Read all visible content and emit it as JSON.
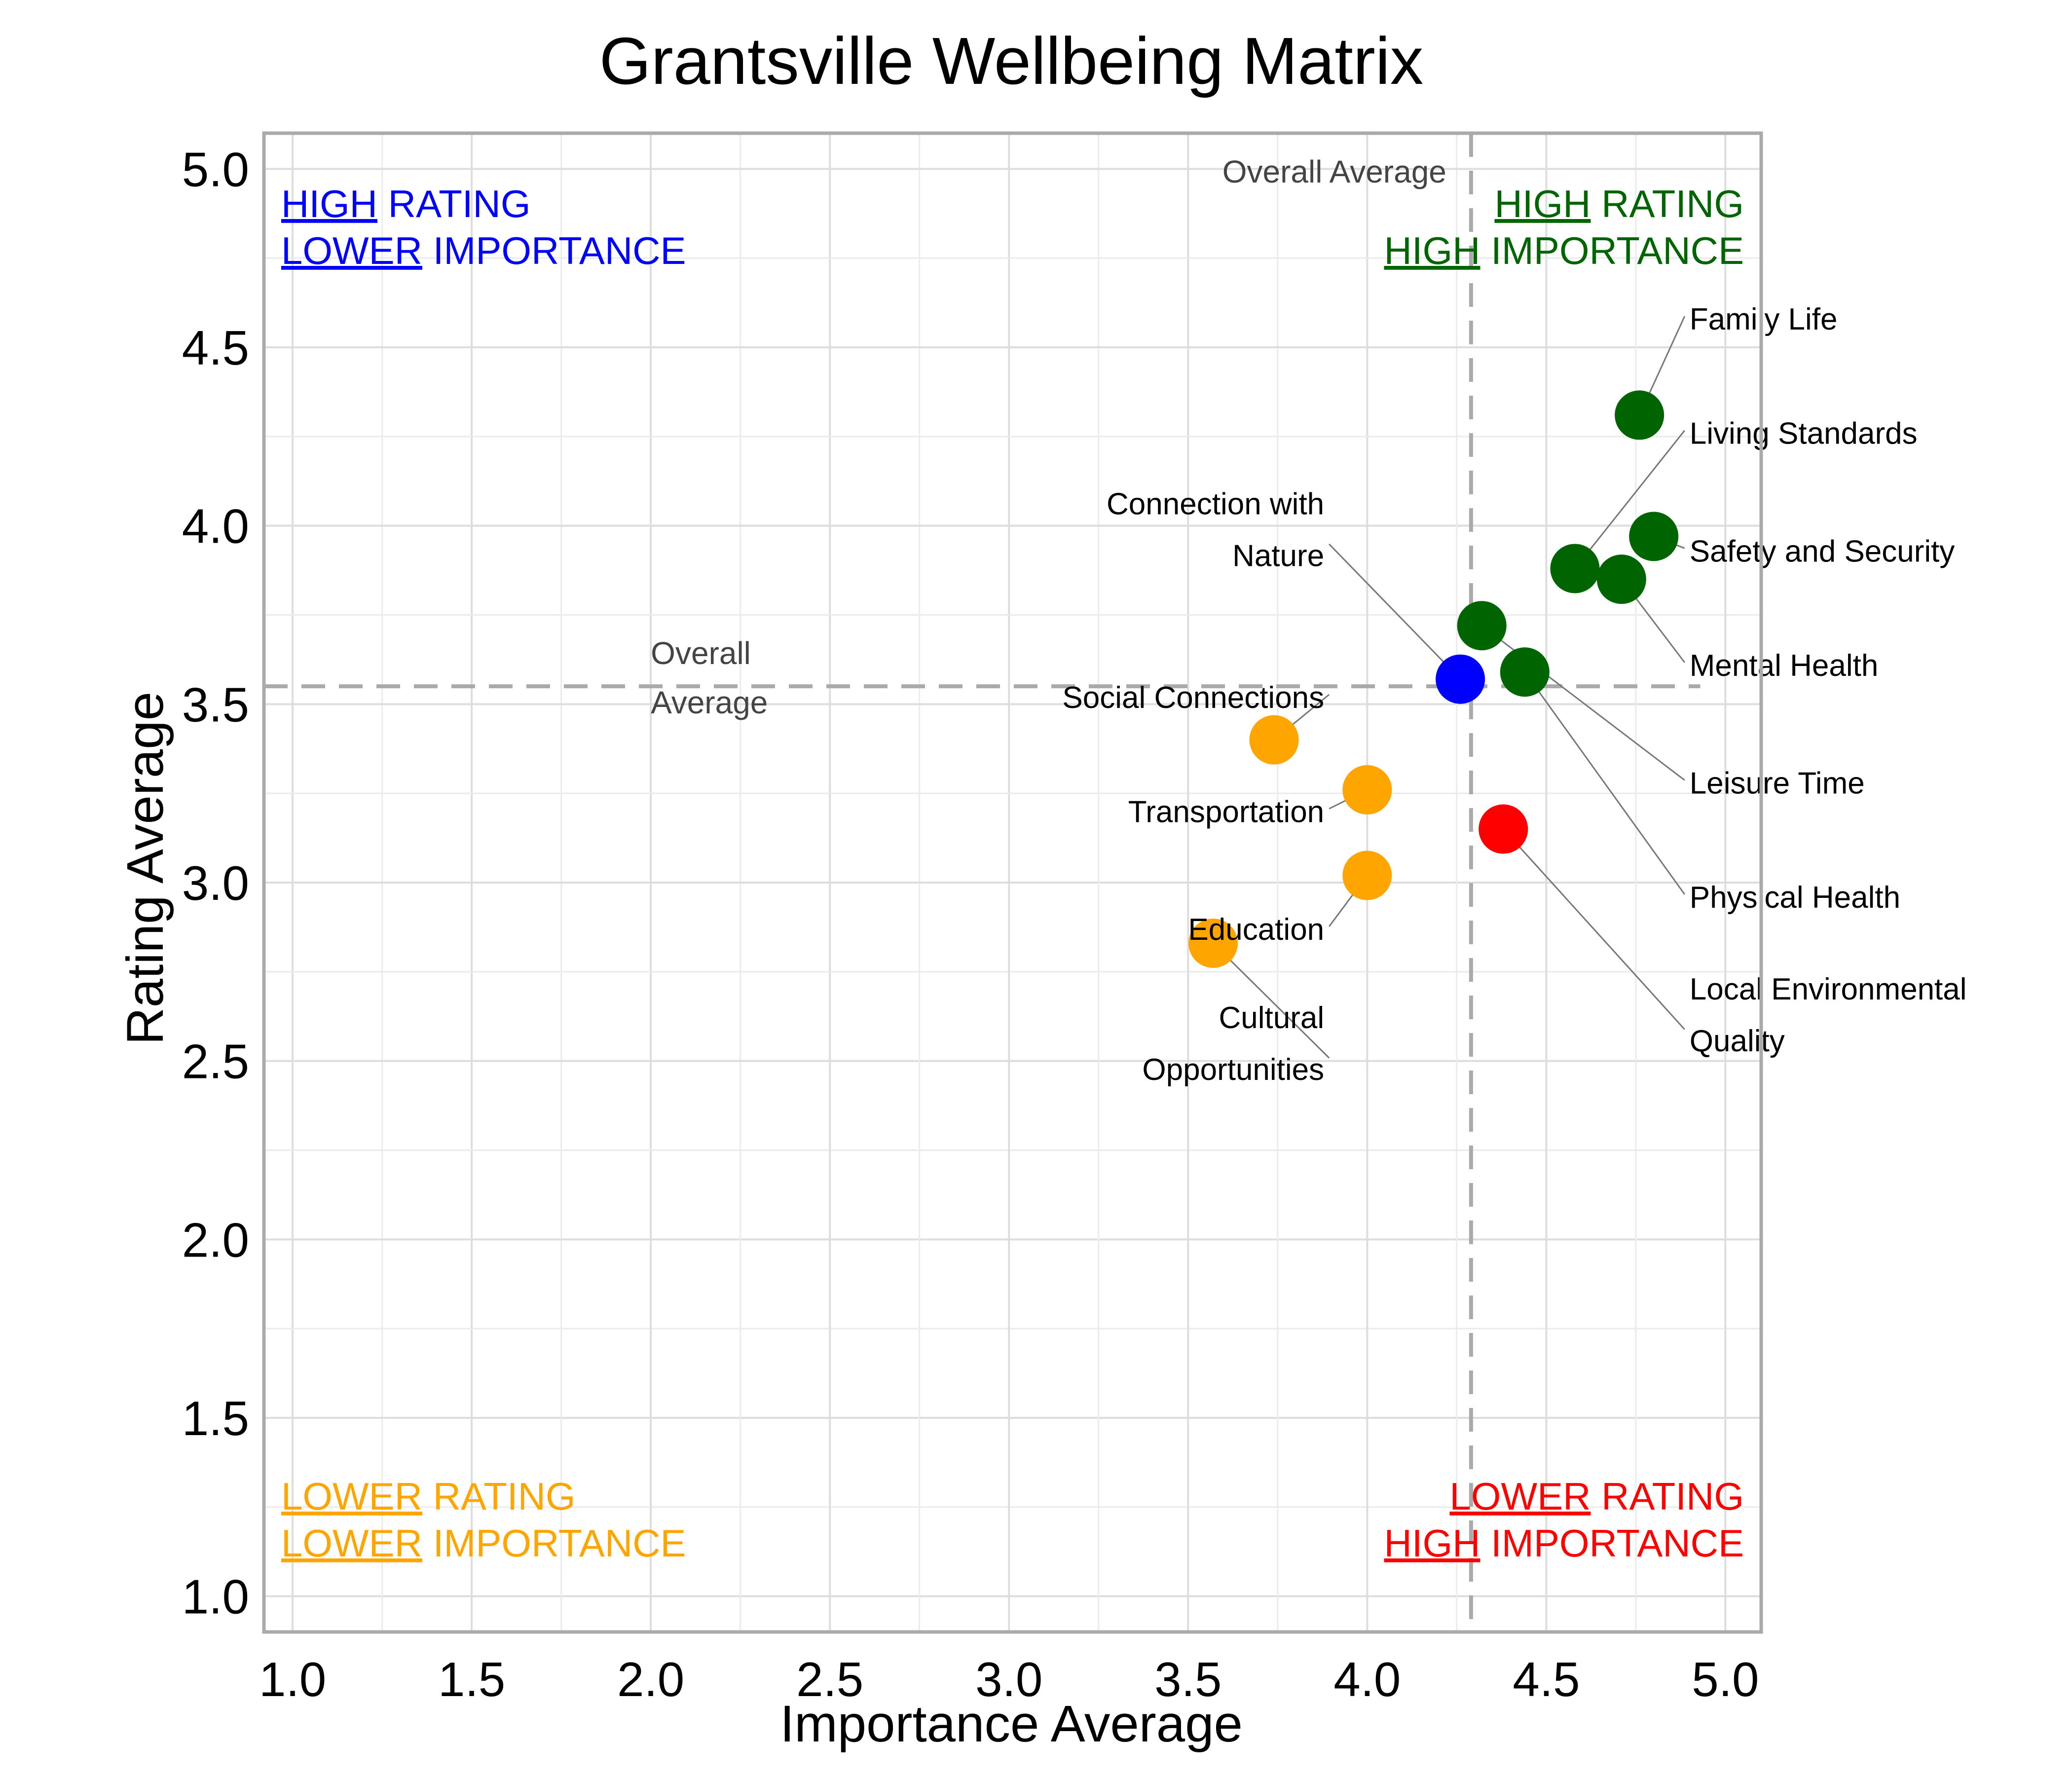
{
  "chart_data": {
    "type": "scatter",
    "title": "Grantsville Wellbeing Matrix",
    "xlabel": "Importance Average",
    "ylabel": "Rating Average",
    "xlim": [
      0.92,
      5.1
    ],
    "ylim": [
      0.9,
      5.1
    ],
    "x_ticks": [
      "1.0",
      "1.5",
      "2.0",
      "2.5",
      "3.0",
      "3.5",
      "4.0",
      "4.5",
      "5.0"
    ],
    "y_ticks": [
      "1.0",
      "1.5",
      "2.0",
      "2.5",
      "3.0",
      "3.5",
      "4.0",
      "4.5",
      "5.0"
    ],
    "grid": true,
    "legend": "none",
    "colors": {
      "high_rating_high_importance": "#006400",
      "high_rating_lower_importance": "#0000ff",
      "lower_rating_lower_importance": "#ffa500",
      "lower_rating_high_importance": "#ff0000",
      "reference_line": "#aaaaaa",
      "leader_line": "#777777"
    },
    "reference_lines": {
      "vertical": {
        "x": 4.29,
        "label": "Overall Average"
      },
      "horizontal": {
        "y": 3.55,
        "label": [
          "Overall",
          "Average"
        ]
      }
    },
    "quadrant_labels": {
      "top_left": {
        "line1_u": "HIGH",
        "line1_rest": " RATING",
        "line2_u": "LOWER",
        "line2_rest": " IMPORTANCE"
      },
      "top_right": {
        "line1_u": "HIGH",
        "line1_rest": " RATING",
        "line2_u": "HIGH",
        "line2_rest": " IMPORTANCE"
      },
      "bottom_left": {
        "line1_u": "LOWER",
        "line1_rest": " RATING",
        "line2_u": "LOWER",
        "line2_rest": " IMPORTANCE"
      },
      "bottom_right": {
        "line1_u": "LOWER",
        "line1_rest": " RATING",
        "line2_u": "HIGH",
        "line2_rest": " IMPORTANCE"
      }
    },
    "points": [
      {
        "label": [
          "Family Life"
        ],
        "x": 4.76,
        "y": 4.31,
        "quadrant": "high_rating_high_importance",
        "label_pos": [
          4.9,
          4.58
        ],
        "align": "start"
      },
      {
        "label": [
          "Living Standards"
        ],
        "x": 4.58,
        "y": 3.88,
        "quadrant": "high_rating_high_importance",
        "label_pos": [
          4.9,
          4.26
        ],
        "align": "start"
      },
      {
        "label": [
          "Safety and Security"
        ],
        "x": 4.8,
        "y": 3.97,
        "quadrant": "high_rating_high_importance",
        "label_pos": [
          4.9,
          3.93
        ],
        "align": "start"
      },
      {
        "label": [
          "Mental Health"
        ],
        "x": 4.71,
        "y": 3.85,
        "quadrant": "high_rating_high_importance",
        "label_pos": [
          4.9,
          3.61
        ],
        "align": "start"
      },
      {
        "label": [
          "Leisure Time"
        ],
        "x": 4.32,
        "y": 3.72,
        "quadrant": "high_rating_high_importance",
        "label_pos": [
          4.9,
          3.28
        ],
        "align": "start"
      },
      {
        "label": [
          "Physical Health"
        ],
        "x": 4.44,
        "y": 3.59,
        "quadrant": "high_rating_high_importance",
        "label_pos": [
          4.9,
          2.96
        ],
        "align": "start"
      },
      {
        "label": [
          "Local Environmental",
          "Quality"
        ],
        "x": 4.38,
        "y": 3.15,
        "quadrant": "lower_rating_high_importance",
        "label_pos": [
          4.9,
          2.63
        ],
        "align": "start"
      },
      {
        "label": [
          "Connection with",
          "Nature"
        ],
        "x": 4.26,
        "y": 3.57,
        "quadrant": "high_rating_lower_importance",
        "label_pos": [
          3.88,
          3.99
        ],
        "align": "end"
      },
      {
        "label": [
          "Social Connections"
        ],
        "x": 3.74,
        "y": 3.4,
        "quadrant": "lower_rating_lower_importance",
        "label_pos": [
          3.88,
          3.52
        ],
        "align": "end"
      },
      {
        "label": [
          "Transportation"
        ],
        "x": 4.0,
        "y": 3.26,
        "quadrant": "lower_rating_lower_importance",
        "label_pos": [
          3.88,
          3.2
        ],
        "align": "end"
      },
      {
        "label": [
          "Education"
        ],
        "x": 4.0,
        "y": 3.02,
        "quadrant": "lower_rating_lower_importance",
        "label_pos": [
          3.88,
          2.87
        ],
        "align": "end"
      },
      {
        "label": [
          "Cultural",
          "Opportunities"
        ],
        "x": 3.57,
        "y": 2.83,
        "quadrant": "lower_rating_lower_importance",
        "label_pos": [
          3.88,
          2.55
        ],
        "align": "end"
      }
    ]
  }
}
